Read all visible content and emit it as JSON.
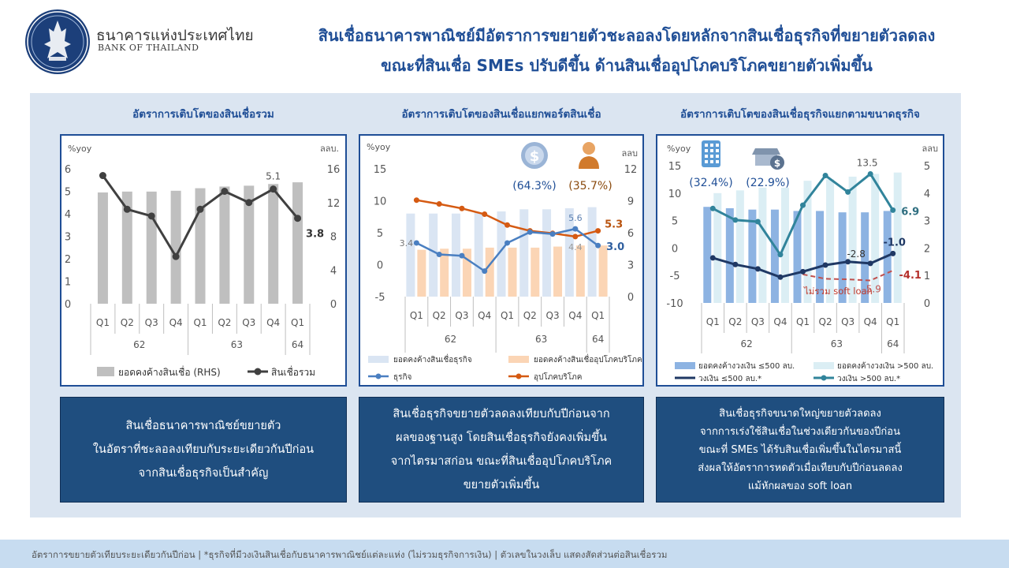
{
  "header": {
    "bank_name_th": "ธนาคารแห่งประเทศไทย",
    "bank_name_en": "BANK OF THAILAND",
    "title_line1": "สินเชื่อธนาคารพาณิชย์มีอัตราการขยายตัวชะลอลงโดยหลักจากสินเชื่อธุรกิจที่ขยายตัวลดลง",
    "title_line2": "ขณะที่สินเชื่อ SMEs ปรับดีขึ้น ด้านสินเชื่ออุปโภคบริโภคขยายตัวเพิ่มขึ้น"
  },
  "notes": {
    "note1": "สินเชื่อธนาคารพาณิชย์ขยายตัว\nในอัตราที่ชะลอลงเทียบกับระยะเดียวกันปีก่อน\nจากสินเชื่อธุรกิจเป็นสำคัญ",
    "note2": "สินเชื่อธุรกิจขยายตัวลดลงเทียบกับปีก่อนจาก\nผลของฐานสูง โดยสินเชื่อธุรกิจยังคงเพิ่มขึ้น\nจากไตรมาสก่อน ขณะที่สินเชื่ออุปโภคบริโภค\nขยายตัวเพิ่มขึ้น",
    "note3": "สินเชื่อธุรกิจขนาดใหญ่ขยายตัวลดลง\nจากการเร่งใช้สินเชื่อในช่วงเดียวกันของปีก่อน\nขณะที่ SMEs ได้รับสินเชื่อเพิ่มขึ้นในไตรมาสนี้\nส่งผลให้อัตราการหดตัวเมื่อเทียบกับปีก่อนลดลง\nแม้หักผลของ soft loan"
  },
  "footer": {
    "text": "อัตราการขยายตัวเทียบระยะเดียวกันปีก่อน | *ธุรกิจที่มีวงเงินสินเชื่อกับธนาคารพาณิชย์แต่ละแห่ง (ไม่รวมธุรกิจการเงิน) | ตัวเลขในวงเล็บ แสดงสัดส่วนต่อสินเชื่อรวม"
  },
  "colors": {
    "navy": "#1f4e96",
    "panel_bg": "#dbe5f1",
    "note_bg": "#1f4e7f",
    "gray_bar": "#bfbfbf",
    "dark_line": "#404040",
    "light_blue_bar": "#dae5f3",
    "peach_bar": "#fbd5b5",
    "blue_line": "#4a7fc1",
    "orange_line": "#d55a12",
    "mid_blue_bar": "#8db3e2",
    "pale_blue_bar": "#dbeef4",
    "navy_line": "#1f3864",
    "teal_line": "#31849b",
    "red_dash": "#c0504d"
  },
  "icons": [
    "bank-logo-icon",
    "dollar-coin-icon",
    "person-icon",
    "building-icon",
    "shop-dollar-icon"
  ],
  "chart_data": [
    {
      "type": "bar",
      "title": "อัตราการเติบโตของสินเชื่อรวม",
      "left_unit": "%yoy",
      "right_unit": "ลลบ.",
      "categories": [
        "Q1",
        "Q2",
        "Q3",
        "Q4",
        "Q1",
        "Q2",
        "Q3",
        "Q4",
        "Q1"
      ],
      "groups": [
        {
          "label": "62",
          "span": 4
        },
        {
          "label": "63",
          "span": 4
        },
        {
          "label": "64",
          "span": 1
        }
      ],
      "left_ticks": [
        "6",
        "5",
        "4",
        "3",
        "2",
        "1",
        "0"
      ],
      "right_ticks": [
        "16",
        "12",
        "8",
        "4",
        "0"
      ],
      "ylim_left": [
        0,
        6
      ],
      "ylim_right": [
        0,
        16
      ],
      "series": [
        {
          "name": "ยอดคงค้างสินเชื่อ (RHS)",
          "kind": "bar",
          "axis": "right",
          "values": [
            13.2,
            13.3,
            13.3,
            13.4,
            13.7,
            13.9,
            14.0,
            14.2,
            14.4
          ]
        },
        {
          "name": "สินเชื่อรวม",
          "kind": "line",
          "axis": "left",
          "values": [
            5.7,
            4.2,
            3.9,
            2.1,
            4.2,
            5.0,
            4.5,
            5.1,
            3.8
          ]
        }
      ],
      "data_labels": [
        {
          "index": 7,
          "series": 1,
          "text": "5.1"
        },
        {
          "index": 8,
          "series": 1,
          "text": "3.8"
        }
      ]
    },
    {
      "type": "bar",
      "title": "อัตราการเติบโตของสินเชื่อแยกพอร์ตสินเชื่อ",
      "left_unit": "%yoy",
      "right_unit": "ลลบ",
      "categories": [
        "Q1",
        "Q2",
        "Q3",
        "Q4",
        "Q1",
        "Q2",
        "Q3",
        "Q4",
        "Q1"
      ],
      "groups": [
        {
          "label": "62",
          "span": 4
        },
        {
          "label": "63",
          "span": 4
        },
        {
          "label": "64",
          "span": 1
        }
      ],
      "left_ticks": [
        "15",
        "10",
        "5",
        "0",
        "-5"
      ],
      "right_ticks": [
        "12",
        "9",
        "6",
        "3",
        "0"
      ],
      "ylim_left": [
        -5,
        15
      ],
      "ylim_right": [
        0,
        12
      ],
      "shares": [
        {
          "icon": "dollar-coin-icon",
          "text": "(64.3%)"
        },
        {
          "icon": "person-icon",
          "text": "(35.7%)"
        }
      ],
      "series": [
        {
          "name": "ยอดคงค้างสินเชื่อธุรกิจ",
          "kind": "bar",
          "axis": "right",
          "values": [
            7.8,
            7.8,
            7.8,
            7.9,
            8.0,
            8.2,
            8.2,
            8.3,
            8.4
          ]
        },
        {
          "name": "ยอดคงค้างสินเชื่ออุปโภคบริโภค",
          "kind": "bar",
          "axis": "right",
          "values": [
            4.4,
            4.5,
            4.5,
            4.6,
            4.6,
            4.6,
            4.7,
            4.8,
            4.8
          ]
        },
        {
          "name": "ธุรกิจ",
          "kind": "line",
          "axis": "left",
          "values": [
            3.4,
            1.6,
            1.4,
            -1.0,
            3.4,
            5.1,
            4.8,
            5.6,
            3.0
          ]
        },
        {
          "name": "อุปโภคบริโภค",
          "kind": "line",
          "axis": "left",
          "values": [
            10.1,
            9.5,
            8.8,
            7.9,
            6.2,
            5.3,
            4.9,
            4.4,
            5.3
          ]
        }
      ],
      "data_labels": [
        {
          "index": 0,
          "series": 2,
          "text": "3.4"
        },
        {
          "index": 7,
          "series": 2,
          "text": "5.6"
        },
        {
          "index": 8,
          "series": 2,
          "text": "3.0"
        },
        {
          "index": 7,
          "series": 3,
          "text": "4.4"
        },
        {
          "index": 8,
          "series": 3,
          "text": "5.3"
        }
      ]
    },
    {
      "type": "bar",
      "title": "อัตราการเติบโตของสินเชื่อธุรกิจแยกตามขนาดธุรกิจ",
      "left_unit": "%yoy",
      "right_unit": "ลลบ",
      "categories": [
        "Q1",
        "Q2",
        "Q3",
        "Q4",
        "Q1",
        "Q2",
        "Q3",
        "Q4",
        "Q1"
      ],
      "groups": [
        {
          "label": "62",
          "span": 4
        },
        {
          "label": "63",
          "span": 4
        },
        {
          "label": "64",
          "span": 1
        }
      ],
      "left_ticks": [
        "15",
        "10",
        "5",
        "0",
        "-5",
        "-10"
      ],
      "right_ticks": [
        "5",
        "4",
        "3",
        "2",
        "1",
        "0"
      ],
      "ylim_left": [
        -10,
        15
      ],
      "ylim_right": [
        0,
        5
      ],
      "shares": [
        {
          "icon": "building-icon",
          "text": "(32.4%)"
        },
        {
          "icon": "shop-dollar-icon",
          "text": "(22.9%)"
        }
      ],
      "annotation": "ไม่รวม soft loan",
      "series": [
        {
          "name": "ยอดคงค้างวงเงิน ≤500 ลบ.",
          "kind": "bar",
          "axis": "right",
          "values": [
            3.5,
            3.45,
            3.4,
            3.4,
            3.35,
            3.35,
            3.3,
            3.3,
            3.35
          ]
        },
        {
          "name": "ยอดคงค้างวงเงิน >500 ลบ.",
          "kind": "bar",
          "axis": "right",
          "values": [
            4.0,
            4.1,
            4.2,
            4.2,
            4.45,
            4.5,
            4.6,
            4.7,
            4.75
          ]
        },
        {
          "name": "วงเงิน ≤500 ลบ.*",
          "kind": "line",
          "axis": "left",
          "values": [
            -1.8,
            -3.0,
            -3.8,
            -5.3,
            -4.3,
            -3.1,
            -2.5,
            -2.8,
            -1.0
          ]
        },
        {
          "name": "วงเงิน >500 ลบ.*",
          "kind": "line",
          "axis": "left",
          "values": [
            7.2,
            5.1,
            4.8,
            -1.2,
            7.8,
            13.2,
            10.2,
            13.5,
            6.9
          ]
        },
        {
          "name": "ไม่รวม soft loan",
          "kind": "dashed",
          "axis": "left",
          "start": 4,
          "values": [
            null,
            null,
            null,
            null,
            -4.8,
            -5.6,
            -5.7,
            -5.9,
            -4.1
          ]
        }
      ],
      "data_labels": [
        {
          "index": 7,
          "series": 3,
          "text": "13.5"
        },
        {
          "index": 8,
          "series": 3,
          "text": "6.9"
        },
        {
          "index": 7,
          "series": 2,
          "text": "-2.8"
        },
        {
          "index": 8,
          "series": 2,
          "text": "-1.0"
        },
        {
          "index": 7,
          "series": 4,
          "text": "-5.9"
        },
        {
          "index": 8,
          "series": 4,
          "text": "-4.1"
        }
      ]
    }
  ]
}
